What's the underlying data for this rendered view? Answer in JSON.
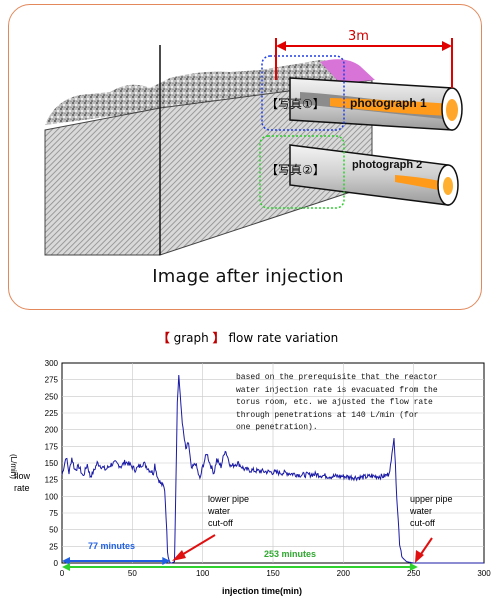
{
  "illustration": {
    "dimension_label": "3m",
    "photo1_jp": "【写真①】",
    "photo1_en": "photograph 1",
    "photo2_jp": "【写真②】",
    "photo2_en": "photograph 2",
    "caption": "Image after injection"
  },
  "graph": {
    "title_bracket_open": "【",
    "title_word": "graph",
    "title_bracket_close": "】",
    "title_rest": "flow rate variation",
    "annotation_lines": [
      "based on the prerequisite that the reactor",
      "water injection rate is evacuated from the",
      "torus room, etc. we ajusted the flow rate",
      "through penetrations at 140 L/min (for",
      "one penetration)."
    ],
    "lower_note": [
      "lower pipe",
      "water",
      "cut-off"
    ],
    "upper_note": [
      "upper pipe",
      "water",
      "cut-off"
    ],
    "span_77": "77 minutes",
    "span_253": "253 minutes",
    "colors": {
      "series": "#1a1aa6",
      "blue_span": "#1f5fe0",
      "green_span": "#2fd12f",
      "arrow": "#e01010"
    }
  },
  "chart_data": {
    "type": "line",
    "xlabel": "injection time(min)",
    "ylabel_parts": [
      "flow",
      "rate",
      "(L/min)"
    ],
    "xlim": [
      0,
      300
    ],
    "ylim": [
      0,
      300
    ],
    "x_ticks": [
      "0",
      "50",
      "100",
      "150",
      "200",
      "250",
      "300"
    ],
    "y_ticks": [
      "0",
      "25",
      "50",
      "75",
      "100",
      "125",
      "150",
      "175",
      "200",
      "225",
      "250",
      "275",
      "300"
    ],
    "grid": true,
    "series": [
      {
        "x": [
          0,
          3,
          5,
          7,
          9,
          12,
          15,
          18,
          20,
          22,
          25,
          28,
          31,
          35,
          38,
          42,
          45,
          48,
          52,
          55,
          58,
          62,
          65,
          66,
          68,
          70,
          72,
          73,
          74,
          75,
          76,
          77,
          78,
          80,
          82,
          83,
          84,
          86,
          88,
          90,
          92,
          95,
          98,
          100,
          103,
          105,
          108,
          110,
          113,
          116,
          120,
          125,
          130,
          140,
          150,
          160,
          170,
          180,
          190,
          200,
          210,
          220,
          228,
          230,
          232,
          234,
          235,
          236,
          238,
          240,
          242,
          245,
          250,
          260,
          280,
          300
        ],
        "y": [
          132,
          160,
          135,
          158,
          140,
          145,
          130,
          148,
          130,
          135,
          150,
          145,
          140,
          148,
          150,
          145,
          152,
          148,
          140,
          145,
          150,
          140,
          135,
          148,
          128,
          120,
          115,
          110,
          70,
          20,
          5,
          0,
          0,
          2,
          240,
          283,
          250,
          200,
          170,
          180,
          140,
          150,
          125,
          145,
          165,
          150,
          135,
          155,
          145,
          170,
          145,
          150,
          140,
          138,
          136,
          135,
          132,
          133,
          130,
          130,
          128,
          130,
          130,
          131,
          133,
          150,
          175,
          190,
          100,
          30,
          8,
          2,
          0,
          0,
          0,
          0
        ]
      }
    ]
  }
}
